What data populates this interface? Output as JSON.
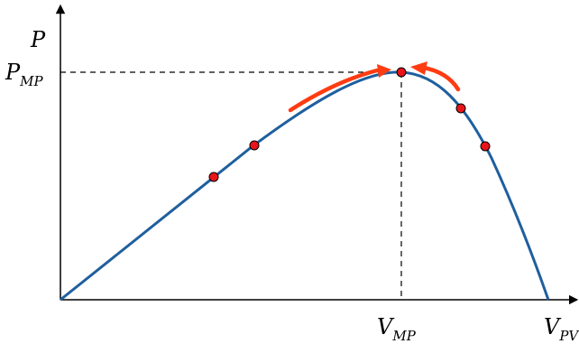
{
  "labels": {
    "y_axis": "P",
    "p_mp_base": "P",
    "p_mp_sub": "MP",
    "v_mp_base": "V",
    "v_mp_sub": "MP",
    "v_pv_base": "V",
    "v_pv_sub": "PV"
  },
  "colors": {
    "curve": "#1f5f9e",
    "markers": "#e8141a",
    "arrows": "#ff3b12",
    "axes": "#000000",
    "guides": "#000000"
  },
  "curve": {
    "shape": "P-V power curve rising linearly from origin to a maximum power point, then falling steeply to zero at V_PV",
    "operating_points_left_of_mpp": 2,
    "operating_points_at_mpp": 1,
    "operating_points_right_of_mpp": 2
  },
  "arrows": [
    {
      "name": "approach-from-left",
      "direction": "right"
    },
    {
      "name": "approach-from-right",
      "direction": "left"
    }
  ]
}
